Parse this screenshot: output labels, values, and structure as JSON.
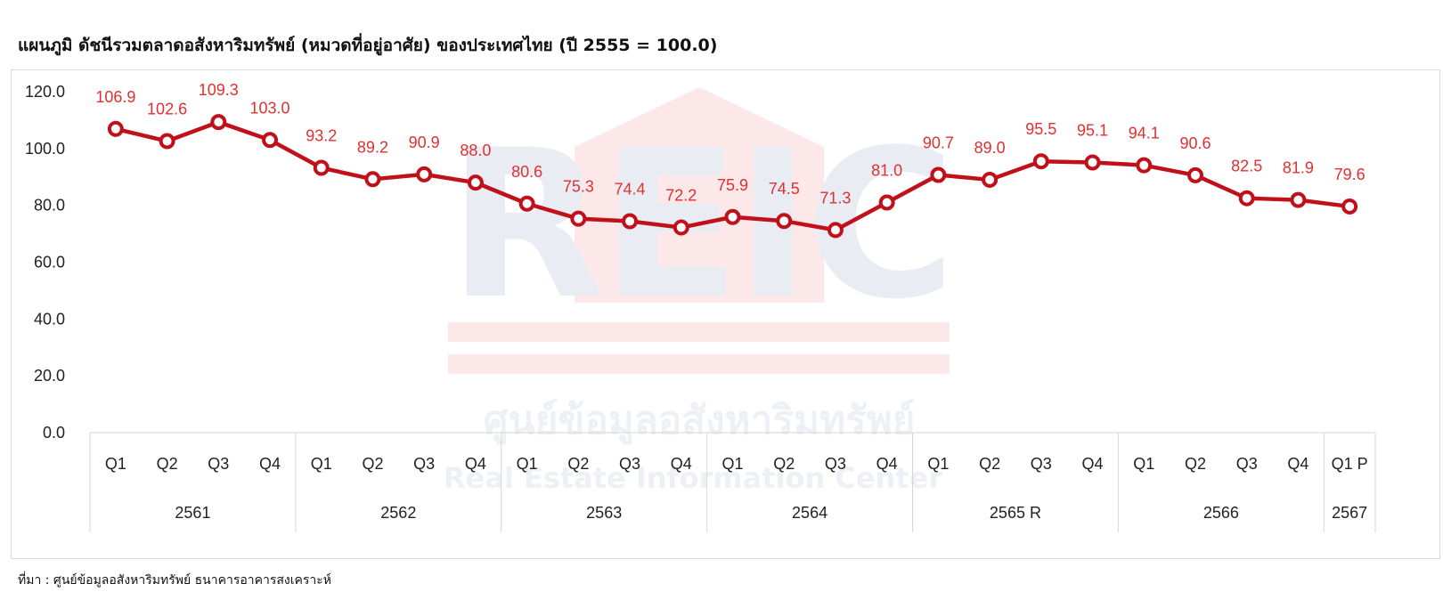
{
  "header": {
    "title": "แผนภูมิ  ดัชนีรวมตลาดอสังหาริมทรัพย์ (หมวดที่อยู่อาศัย) ของประเทศไทย (ปี 2555 = 100.0)"
  },
  "footer": {
    "source": "ที่มา : ศูนย์ข้อมูลอสังหาริมทรัพย์ ธนาคารอาคารสงเคราะห์"
  },
  "watermark": {
    "logo_text": "REIC",
    "thai_name": "ศูนย์ข้อมูลอสังหาริมทรัพย์",
    "english_name": "Real Estate Information Center"
  },
  "chart_data": {
    "type": "line",
    "title": "แผนภูมิ  ดัชนีรวมตลาดอสังหาริมทรัพย์ (หมวดที่อยู่อาศัย) ของประเทศไทย (ปี 2555 = 100.0)",
    "xlabel": "",
    "ylabel": "",
    "ylim": [
      0,
      120
    ],
    "y_ticks": [
      "0.0",
      "20.0",
      "40.0",
      "60.0",
      "80.0",
      "100.0",
      "120.0"
    ],
    "grid": false,
    "legend": "none",
    "color": "#c0101a",
    "label_color": "#e03030",
    "quarters": [
      "Q1",
      "Q2",
      "Q3",
      "Q4",
      "Q1",
      "Q2",
      "Q3",
      "Q4",
      "Q1",
      "Q2",
      "Q3",
      "Q4",
      "Q1",
      "Q2",
      "Q3",
      "Q4",
      "Q1",
      "Q2",
      "Q3",
      "Q4",
      "Q1",
      "Q2",
      "Q3",
      "Q4",
      "Q1 P"
    ],
    "years": [
      {
        "label": "2561",
        "span": 4
      },
      {
        "label": "2562",
        "span": 4
      },
      {
        "label": "2563",
        "span": 4
      },
      {
        "label": "2564",
        "span": 4
      },
      {
        "label": "2565 R",
        "span": 4
      },
      {
        "label": "2566",
        "span": 4
      },
      {
        "label": "2567",
        "span": 1
      }
    ],
    "values": [
      106.9,
      102.6,
      109.3,
      103.0,
      93.2,
      89.2,
      90.9,
      88.0,
      80.6,
      75.3,
      74.4,
      72.2,
      75.9,
      74.5,
      71.3,
      81.0,
      90.7,
      89.0,
      95.5,
      95.1,
      94.1,
      90.6,
      82.5,
      81.9,
      79.6
    ],
    "value_labels": [
      "106.9",
      "102.6",
      "109.3",
      "103.0",
      "93.2",
      "89.2",
      "90.9",
      "88.0",
      "80.6",
      "75.3",
      "74.4",
      "72.2",
      "75.9",
      "74.5",
      "71.3",
      "81.0",
      "90.7",
      "89.0",
      "95.5",
      "95.1",
      "94.1",
      "90.6",
      "82.5",
      "81.9",
      "79.6"
    ]
  }
}
